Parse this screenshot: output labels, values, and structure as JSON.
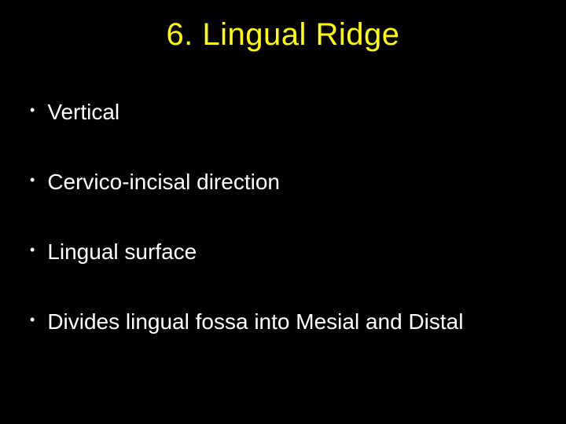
{
  "slide": {
    "background_color": "#000000",
    "title": {
      "text": "6. Lingual Ridge",
      "color": "#ffff00",
      "font_size": 40,
      "text_align": "center"
    },
    "bullets": {
      "text_color": "#ffffff",
      "dot_color": "#ffffff",
      "font_size": 28,
      "items": [
        {
          "text": "Vertical"
        },
        {
          "text": "Cervico-incisal direction"
        },
        {
          "text": "Lingual surface"
        },
        {
          "text": "Divides lingual fossa into Mesial and Distal"
        }
      ]
    }
  }
}
